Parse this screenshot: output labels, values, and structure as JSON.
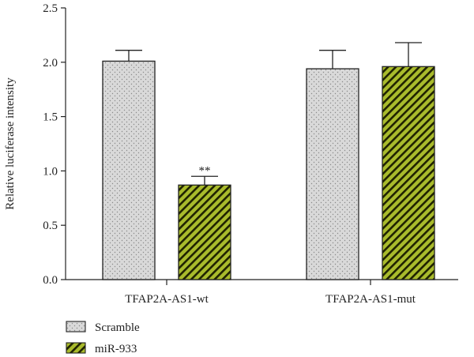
{
  "chart_data": {
    "type": "bar",
    "ylabel": "Relative luciferase intensity",
    "ylim": [
      0,
      2.5
    ],
    "yticks": [
      "0.0",
      "0.5",
      "1.0",
      "1.5",
      "2.0",
      "2.5"
    ],
    "categories": [
      "TFAP2A-AS1-wt",
      "TFAP2A-AS1-mut"
    ],
    "series": [
      {
        "name": "Scramble",
        "values": [
          2.01,
          1.94
        ],
        "errors": [
          0.1,
          0.17
        ],
        "color": "#d9d9d9",
        "pattern": "dots"
      },
      {
        "name": "miR-933",
        "values": [
          0.87,
          1.96
        ],
        "errors": [
          0.08,
          0.22
        ],
        "color": "#a9bb2c",
        "pattern": "stripes"
      }
    ],
    "annotations": [
      {
        "series": 1,
        "category": 0,
        "text": "**"
      }
    ],
    "legend": "bottom-left"
  }
}
